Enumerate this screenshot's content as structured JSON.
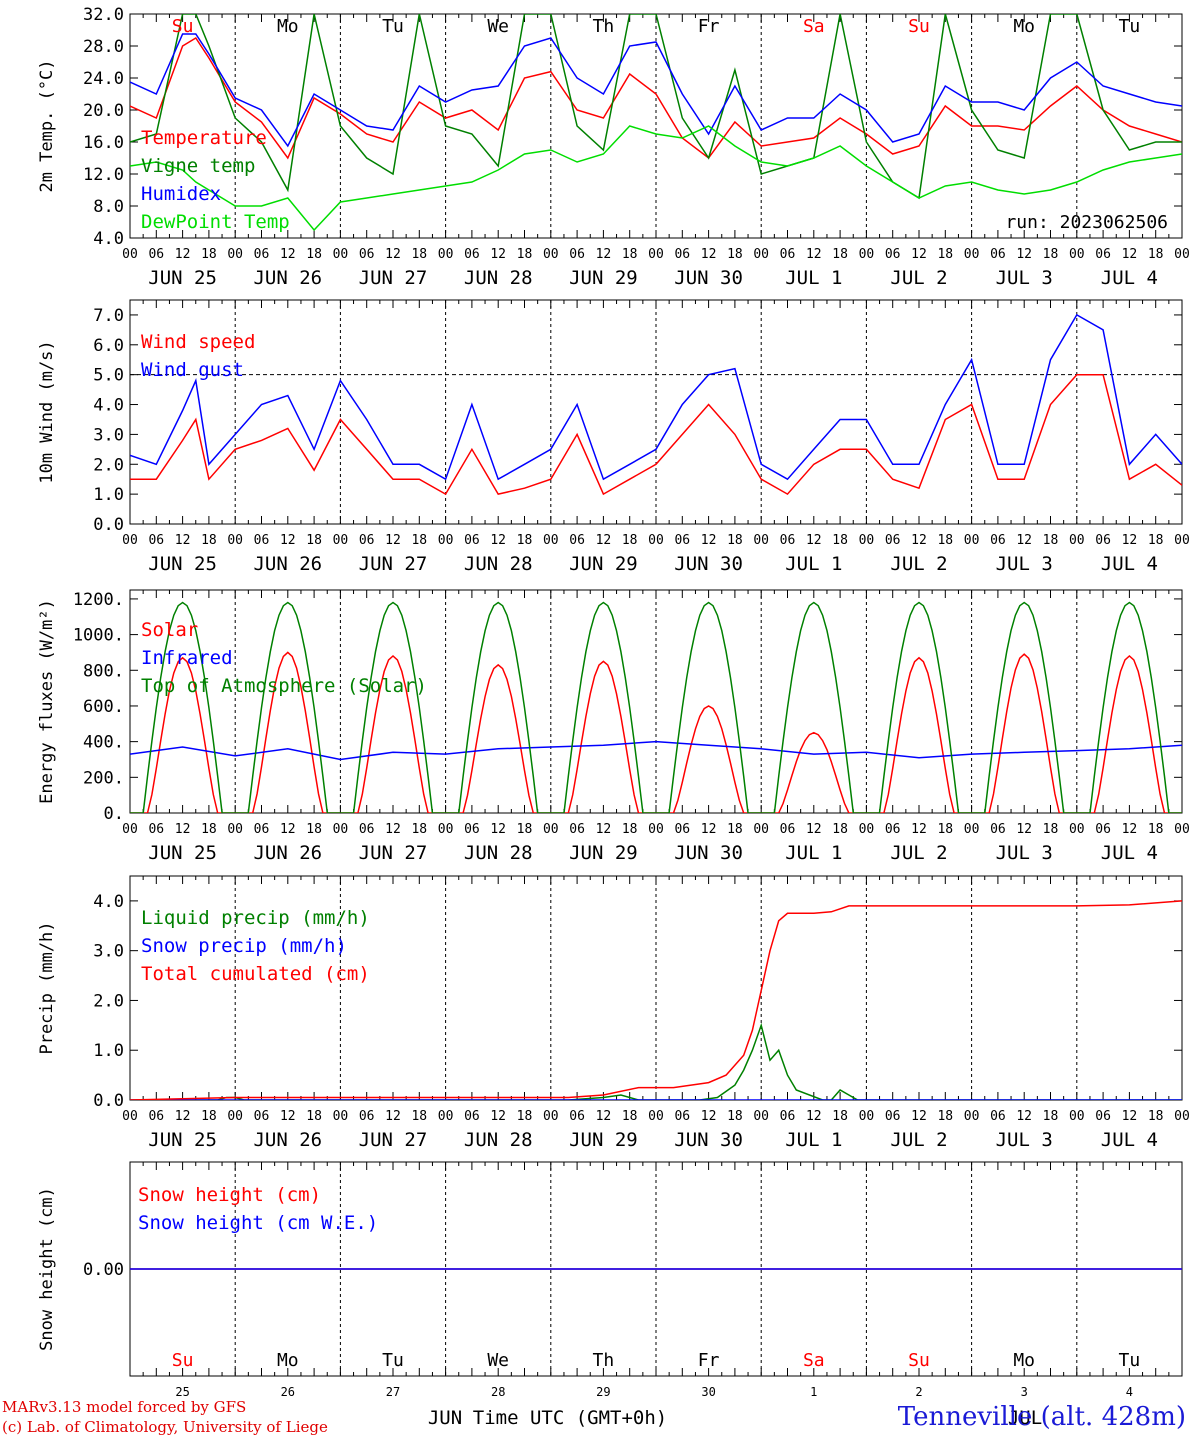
{
  "run_label": "run: 2023062506",
  "x_axis_title": "Time UTC (GMT+0h)",
  "station": "Tenneville (alt. 428m)",
  "credits": [
    "MARv3.13 model forced by GFS",
    "(c) Lab. of Climatology, University of Liege"
  ],
  "months_bottom": [
    "JUN",
    "JUL"
  ],
  "colors": {
    "temp": "#ff0000",
    "vigne": "#008000",
    "humidex": "#0000ff",
    "dew": "#00dd00",
    "toa": "#008000",
    "snow_cm": "#ff0000",
    "snow_we": "#0000ff"
  },
  "chart_data": [
    {
      "type": "line",
      "panel": "temperature",
      "ylabel": "2m Temp. (°C)",
      "ylim": [
        4.0,
        32.0
      ],
      "yticks": [
        "4.0",
        "8.0",
        "12.0",
        "16.0",
        "20.0",
        "24.0",
        "28.0",
        "32.0"
      ],
      "x_unit": "hours since 2023-06-25 00 UTC",
      "weekdays": [
        "Su",
        "Mo",
        "Tu",
        "We",
        "Th",
        "Fr",
        "Sa",
        "Su",
        "Mo",
        "Tu"
      ],
      "weekday_colors": [
        "red",
        "black",
        "black",
        "black",
        "black",
        "black",
        "red",
        "red",
        "black",
        "black"
      ],
      "hour_ticks": [
        "00",
        "06",
        "12",
        "18"
      ],
      "date_labels": [
        "JUN 25",
        "JUN 26",
        "JUN 27",
        "JUN 28",
        "JUN 29",
        "JUN 30",
        "JUL  1",
        "JUL  2",
        "JUL  3",
        "JUL  4"
      ],
      "series": [
        {
          "name": "Temperature",
          "x": [
            0,
            6,
            12,
            15,
            18,
            24,
            30,
            36,
            42,
            48,
            54,
            60,
            66,
            72,
            78,
            84,
            90,
            96,
            102,
            108,
            114,
            120,
            126,
            132,
            138,
            144,
            150,
            156,
            162,
            168,
            174,
            180,
            186,
            192,
            198,
            204,
            210,
            216,
            222,
            228,
            234,
            240
          ],
          "y": [
            20.5,
            19.0,
            28.0,
            29.0,
            26.5,
            21.0,
            18.5,
            14.0,
            21.5,
            19.5,
            17.0,
            16.0,
            21.0,
            19.0,
            20.0,
            17.5,
            24.0,
            24.8,
            20.0,
            19.0,
            24.5,
            22.0,
            16.5,
            14.0,
            18.5,
            15.5,
            16.0,
            16.5,
            19.0,
            17.0,
            14.5,
            15.5,
            20.5,
            18.0,
            18.0,
            17.5,
            20.5,
            23.0,
            20.0,
            18.0,
            17.0,
            16.0
          ]
        },
        {
          "name": "Vigne temp",
          "x": [
            0,
            6,
            12,
            15,
            18,
            24,
            30,
            36,
            42,
            48,
            54,
            60,
            66,
            72,
            78,
            84,
            90,
            96,
            102,
            108,
            114,
            120,
            126,
            132,
            138,
            144,
            150,
            156,
            162,
            168,
            174,
            180,
            186,
            192,
            198,
            204,
            210,
            216,
            222,
            228,
            234,
            240
          ],
          "y": [
            16.0,
            17.0,
            32.0,
            32.0,
            28.0,
            19.0,
            16.0,
            10.0,
            32.0,
            18.0,
            14.0,
            12.0,
            32.0,
            18.0,
            17.0,
            13.0,
            32.0,
            32.0,
            18.0,
            15.0,
            32.0,
            32.0,
            19.0,
            14.0,
            25.0,
            12.0,
            13.0,
            14.0,
            32.0,
            16.0,
            11.0,
            9.0,
            32.0,
            20.0,
            15.0,
            14.0,
            32.0,
            32.0,
            20.0,
            15.0,
            16.0,
            16.0
          ]
        },
        {
          "name": "Humidex",
          "x": [
            0,
            6,
            12,
            15,
            18,
            24,
            30,
            36,
            42,
            48,
            54,
            60,
            66,
            72,
            78,
            84,
            90,
            96,
            102,
            108,
            114,
            120,
            126,
            132,
            138,
            144,
            150,
            156,
            162,
            168,
            174,
            180,
            186,
            192,
            198,
            204,
            210,
            216,
            222,
            228,
            234,
            240
          ],
          "y": [
            23.5,
            22.0,
            29.5,
            29.5,
            27.0,
            21.5,
            20.0,
            15.5,
            22.0,
            20.0,
            18.0,
            17.5,
            23.0,
            21.0,
            22.5,
            23.0,
            28.0,
            29.0,
            24.0,
            22.0,
            28.0,
            28.5,
            22.0,
            17.0,
            23.0,
            17.5,
            19.0,
            19.0,
            22.0,
            20.0,
            16.0,
            17.0,
            23.0,
            21.0,
            21.0,
            20.0,
            24.0,
            26.0,
            23.0,
            22.0,
            21.0,
            20.5
          ]
        },
        {
          "name": "DewPoint Temp",
          "x": [
            0,
            6,
            12,
            15,
            18,
            24,
            30,
            36,
            42,
            48,
            54,
            60,
            66,
            72,
            78,
            84,
            90,
            96,
            102,
            108,
            114,
            120,
            126,
            132,
            138,
            144,
            150,
            156,
            162,
            168,
            174,
            180,
            186,
            192,
            198,
            204,
            210,
            216,
            222,
            228,
            234,
            240
          ],
          "y": [
            13.0,
            13.5,
            12.5,
            11.0,
            10.0,
            8.0,
            8.0,
            9.0,
            5.0,
            8.5,
            9.0,
            9.5,
            10.0,
            10.5,
            11.0,
            12.5,
            14.5,
            15.0,
            13.5,
            14.5,
            18.0,
            17.0,
            16.5,
            18.0,
            15.5,
            13.5,
            13.0,
            14.0,
            15.5,
            13.0,
            11.0,
            9.0,
            10.5,
            11.0,
            10.0,
            9.5,
            10.0,
            11.0,
            12.5,
            13.5,
            14.0,
            14.5
          ]
        }
      ]
    },
    {
      "type": "line",
      "panel": "wind",
      "ylabel": "10m Wind (m/s)",
      "ylim": [
        0.0,
        7.5
      ],
      "yticks": [
        "0.0",
        "1.0",
        "2.0",
        "3.0",
        "4.0",
        "5.0",
        "6.0",
        "7.0"
      ],
      "reference_line": 5.0,
      "date_labels": [
        "JUN 25",
        "JUN 26",
        "JUN 27",
        "JUN 28",
        "JUN 29",
        "JUN 30",
        "JUL  1",
        "JUL  2",
        "JUL  3",
        "JUL  4"
      ],
      "series": [
        {
          "name": "Wind speed",
          "x": [
            0,
            6,
            12,
            15,
            18,
            24,
            30,
            36,
            42,
            48,
            54,
            60,
            66,
            72,
            78,
            84,
            90,
            96,
            102,
            108,
            114,
            120,
            126,
            132,
            138,
            144,
            150,
            156,
            162,
            168,
            174,
            180,
            186,
            192,
            198,
            204,
            210,
            216,
            222,
            228,
            234,
            240
          ],
          "y": [
            1.5,
            1.5,
            2.8,
            3.5,
            1.5,
            2.5,
            2.8,
            3.2,
            1.8,
            3.5,
            2.5,
            1.5,
            1.5,
            1.0,
            2.5,
            1.0,
            1.2,
            1.5,
            3.0,
            1.0,
            1.5,
            2.0,
            3.0,
            4.0,
            3.0,
            1.5,
            1.0,
            2.0,
            2.5,
            2.5,
            1.5,
            1.2,
            3.5,
            4.0,
            1.5,
            1.5,
            4.0,
            5.0,
            5.0,
            1.5,
            2.0,
            1.3
          ]
        },
        {
          "name": "Wind gust",
          "x": [
            0,
            6,
            12,
            15,
            18,
            24,
            30,
            36,
            42,
            48,
            54,
            60,
            66,
            72,
            78,
            84,
            90,
            96,
            102,
            108,
            114,
            120,
            126,
            132,
            138,
            144,
            150,
            156,
            162,
            168,
            174,
            180,
            186,
            192,
            198,
            204,
            210,
            216,
            222,
            228,
            234,
            240
          ],
          "y": [
            2.3,
            2.0,
            3.8,
            4.8,
            2.0,
            3.0,
            4.0,
            4.3,
            2.5,
            4.8,
            3.5,
            2.0,
            2.0,
            1.5,
            4.0,
            1.5,
            2.0,
            2.5,
            4.0,
            1.5,
            2.0,
            2.5,
            4.0,
            5.0,
            5.2,
            2.0,
            1.5,
            2.5,
            3.5,
            3.5,
            2.0,
            2.0,
            4.0,
            5.5,
            2.0,
            2.0,
            5.5,
            7.0,
            6.5,
            2.0,
            3.0,
            2.0
          ]
        }
      ]
    },
    {
      "type": "line",
      "panel": "energy",
      "ylabel": "Energy fluxes (W/m²)",
      "ylim": [
        0,
        1250
      ],
      "yticks": [
        "0.",
        "200.",
        "400.",
        "600.",
        "800.",
        "1000.",
        "1200."
      ],
      "yticks_values": [
        0,
        200,
        400,
        600,
        800,
        1000,
        1200
      ],
      "date_labels": [
        "JUN 25",
        "JUN 26",
        "JUN 27",
        "JUN 28",
        "JUN 29",
        "JUN 30",
        "JUL  1",
        "JUL  2",
        "JUL  3",
        "JUL  4"
      ],
      "solar_day_peaks": [
        870,
        900,
        880,
        830,
        850,
        600,
        450,
        870,
        890,
        880
      ],
      "toa_peak": 1180,
      "series": [
        {
          "name": "Solar",
          "x": [],
          "y": []
        },
        {
          "name": "Infrared",
          "x": [
            0,
            12,
            24,
            36,
            48,
            60,
            72,
            84,
            96,
            108,
            120,
            132,
            144,
            156,
            168,
            180,
            192,
            204,
            216,
            228,
            240
          ],
          "y": [
            330,
            370,
            320,
            360,
            300,
            340,
            330,
            360,
            370,
            380,
            400,
            380,
            360,
            330,
            340,
            310,
            330,
            340,
            350,
            360,
            380
          ]
        },
        {
          "name": "Top of Atmosphere (Solar)",
          "x": [],
          "y": []
        }
      ]
    },
    {
      "type": "line",
      "panel": "precip",
      "ylabel": "Precip (mm/h)",
      "ylim": [
        0.0,
        4.5
      ],
      "yticks": [
        "0.0",
        "1.0",
        "2.0",
        "3.0",
        "4.0"
      ],
      "date_labels": [
        "JUN 25",
        "JUN 26",
        "JUN 27",
        "JUN 28",
        "JUN 29",
        "JUN 30",
        "JUL  1",
        "JUL  2",
        "JUL  3",
        "JUL  4"
      ],
      "series": [
        {
          "name": "Liquid precip (mm/h)",
          "x": [
            0,
            20,
            22,
            24,
            26,
            100,
            108,
            112,
            116,
            130,
            134,
            138,
            140,
            142,
            144,
            146,
            148,
            150,
            152,
            158,
            160,
            162,
            164,
            166,
            168,
            240
          ],
          "y": [
            0,
            0,
            0.05,
            0.05,
            0,
            0,
            0.05,
            0.1,
            0,
            0,
            0.05,
            0.3,
            0.6,
            1.0,
            1.5,
            0.8,
            1.0,
            0.5,
            0.2,
            0,
            0,
            0.2,
            0.1,
            0,
            0,
            0
          ]
        },
        {
          "name": "Snow precip (mm/h)",
          "x": [
            0,
            240
          ],
          "y": [
            0,
            0
          ]
        },
        {
          "name": "Total cumulated (cm)",
          "x": [
            0,
            24,
            100,
            108,
            116,
            124,
            132,
            136,
            140,
            142,
            144,
            146,
            148,
            150,
            152,
            156,
            160,
            164,
            168,
            204,
            216,
            228,
            240
          ],
          "y": [
            0,
            0.05,
            0.05,
            0.1,
            0.25,
            0.25,
            0.35,
            0.5,
            0.9,
            1.4,
            2.2,
            3.0,
            3.6,
            3.75,
            3.75,
            3.75,
            3.78,
            3.9,
            3.9,
            3.9,
            3.9,
            3.92,
            4.0
          ]
        }
      ]
    },
    {
      "type": "line",
      "panel": "snow",
      "ylabel": "Snow height (cm)",
      "ylim": [
        -1.0,
        1.0
      ],
      "yticks": [
        "0.00"
      ],
      "weekdays": [
        "Su",
        "Mo",
        "Tu",
        "We",
        "Th",
        "Fr",
        "Sa",
        "Su",
        "Mo",
        "Tu"
      ],
      "weekday_colors": [
        "red",
        "black",
        "black",
        "black",
        "black",
        "black",
        "red",
        "red",
        "black",
        "black"
      ],
      "day_numbers": [
        "25",
        "26",
        "27",
        "28",
        "29",
        "30",
        "1",
        "2",
        "3",
        "4"
      ],
      "series": [
        {
          "name": "Snow height (cm)",
          "x": [
            0,
            240
          ],
          "y": [
            0,
            0
          ]
        },
        {
          "name": "Snow height (cm W.E.)",
          "x": [
            0,
            240
          ],
          "y": [
            0,
            0
          ]
        }
      ]
    }
  ]
}
